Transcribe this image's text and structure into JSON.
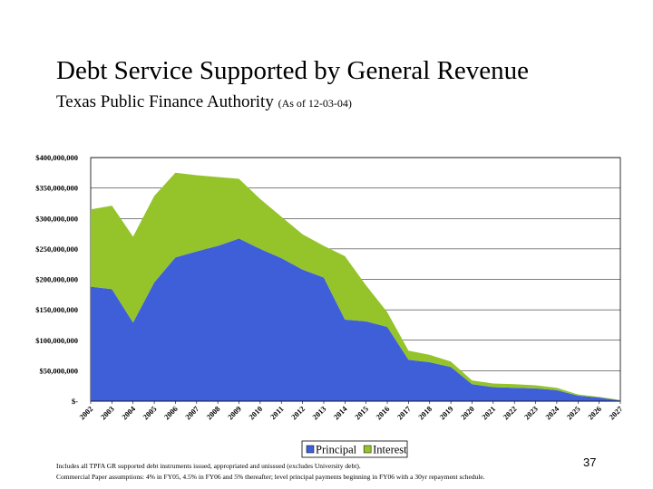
{
  "header": {
    "title": "Debt Service Supported by General Revenue",
    "subtitle": "Texas Public Finance Authority",
    "as_of": "(As of 12-03-04)"
  },
  "chart_data": {
    "type": "area",
    "stacked": true,
    "title": "",
    "xlabel": "",
    "ylabel": "",
    "x": [
      "2002",
      "2003",
      "2004",
      "2005",
      "2006",
      "2007",
      "2008",
      "2009",
      "2010",
      "2011",
      "2012",
      "2013",
      "2014",
      "2015",
      "2016",
      "2017",
      "2018",
      "2019",
      "2020",
      "2021",
      "2022",
      "2023",
      "2024",
      "2025",
      "2026",
      "2027"
    ],
    "ylim": [
      0,
      400000000
    ],
    "yticks": [
      0,
      50000000,
      100000000,
      150000000,
      200000000,
      250000000,
      300000000,
      350000000,
      400000000
    ],
    "ytick_labels": [
      "$-",
      "$50,000,000",
      "$100,000,000",
      "$150,000,000",
      "$200,000,000",
      "$250,000,000",
      "$300,000,000",
      "$350,000,000",
      "$400,000,000"
    ],
    "grid": "horizontal",
    "legend": "bottom",
    "series": [
      {
        "name": "Principal",
        "color": "#3f5fd9",
        "values": [
          188000000,
          184000000,
          129000000,
          195000000,
          236000000,
          246000000,
          255000000,
          267000000,
          250000000,
          235000000,
          216000000,
          203000000,
          134000000,
          131000000,
          122000000,
          68000000,
          64000000,
          56000000,
          28000000,
          23000000,
          22000000,
          21000000,
          18000000,
          9000000,
          6000000,
          1000000
        ]
      },
      {
        "name": "Interest",
        "color": "#94c42a",
        "values": [
          127000000,
          137000000,
          141000000,
          142000000,
          139000000,
          125000000,
          113000000,
          98000000,
          82000000,
          68000000,
          58000000,
          52000000,
          104000000,
          59000000,
          24000000,
          15000000,
          12000000,
          9000000,
          6000000,
          6000000,
          6000000,
          5000000,
          4000000,
          2000000,
          1000000,
          1000000
        ]
      }
    ]
  },
  "footnotes": [
    "Includes all TPFA GR supported debt instruments issued, appropriated and unissued (excludes University debt).",
    "Commercial Paper assumptions: 4% in FY05, 4.5% in FY06 and 5% thereafter; level principal payments beginning in FY06 with a 30yr repayment schedule."
  ],
  "page_number": "37"
}
